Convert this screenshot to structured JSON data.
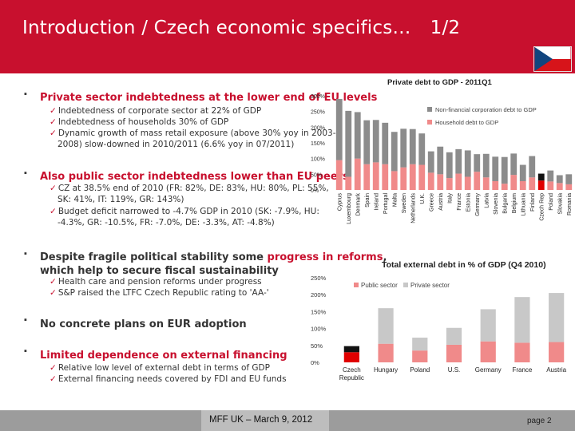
{
  "header": {
    "title": "Introduction / Czech economic specifics…",
    "page_fraction": "1/2"
  },
  "bullets": [
    {
      "text": "Private sector indebtedness at the lower end of EU levels",
      "subs": [
        "Indebtedness of corporate sector at 22% of GDP",
        "Indebtedness of households 30% of GDP",
        "Dynamic growth of mass retail exposure (above 30% yoy in 2003-",
        "2008) slow-downed in 2010/2011 (6.6% yoy in 07/2011)"
      ]
    },
    {
      "text": "Also public sector indebtedness lower than EU peers",
      "subs": [
        "CZ at 38.5% end of 2010  (FR: 82%, DE: 83%, HU: 80%, PL: 55%,",
        "SK: 41%, IT: 119%, GR: 143%)",
        "Budget deficit narrowed to  -4.7% GDP in 2010 (SK:  -7.9%, HU:",
        "-4.3%, GR: -10.5%, FR: -7.0%, DE: -3.3%, AT: -4.8%)"
      ]
    },
    {
      "text_a": "Despite fragile political stability some ",
      "text_b": "progress in reforms",
      "text_c": ",",
      "text_d": "which help to secure fiscal sustainability",
      "subs": [
        "Health care and pension reforms under progress",
        "S&P raised the LTFC Czech Republic rating to 'AA-'"
      ]
    },
    {
      "text": "No concrete plans on EUR adoption",
      "subs": []
    },
    {
      "text": "Limited dependence on external financing",
      "subs": [
        "Relative low level of external debt in terms of GDP",
        "External financing needs covered by FDI and EU funds"
      ]
    }
  ],
  "colors": {
    "brand_red": "#c8102e",
    "series_grey": "#8c8c8c",
    "series_pink": "#f08a8a",
    "highlight_black": "#111111",
    "highlight_red": "#e00000"
  },
  "chart_data": [
    {
      "type": "bar",
      "title": "Private debt to GDP - 2011Q1",
      "stacked": true,
      "ylim": [
        0,
        300
      ],
      "yticks": [
        "0%",
        "50%",
        "100%",
        "150%",
        "200%",
        "250%",
        "300%"
      ],
      "legend_position": "top-right",
      "categories": [
        "Cyprus",
        "Luxembourg",
        "Denmark",
        "Spain",
        "Ireland",
        "Portugal",
        "Malta",
        "Sweden",
        "Netherlands",
        "U.K.",
        "Greece",
        "Austria",
        "Italy",
        "France",
        "Estonia",
        "Germany",
        "Latvia",
        "Slovenia",
        "Bulgaria",
        "Belgium",
        "Lithuania",
        "Finland",
        "Czech Rep",
        "Poland",
        "Slovakia",
        "Romania"
      ],
      "highlight_category": "Czech Rep",
      "series": [
        {
          "name": "Non-financial corporation debt to GDP",
          "values": [
            195,
            210,
            148,
            140,
            135,
            132,
            125,
            123,
            112,
            100,
            68,
            88,
            82,
            78,
            84,
            56,
            75,
            78,
            85,
            68,
            52,
            68,
            22,
            35,
            25,
            32
          ]
        },
        {
          "name": "Household debt to GDP",
          "values": [
            95,
            42,
            100,
            82,
            88,
            82,
            60,
            72,
            82,
            80,
            55,
            50,
            38,
            52,
            42,
            58,
            40,
            28,
            20,
            48,
            28,
            40,
            30,
            27,
            22,
            18
          ]
        }
      ]
    },
    {
      "type": "bar",
      "title": "Total external debt in % of GDP (Q4 2010)",
      "stacked": true,
      "ylim": [
        0,
        250
      ],
      "yticks": [
        "0%",
        "50%",
        "100%",
        "150%",
        "200%",
        "250%"
      ],
      "legend_position": "top-left",
      "categories": [
        "Czech Republic",
        "Hungary",
        "Poland",
        "U.S.",
        "Germany",
        "France",
        "Austria"
      ],
      "category_lines": [
        [
          "Czech",
          "Republic"
        ],
        [
          "Hungary"
        ],
        [
          "Poland"
        ],
        [
          "U.S."
        ],
        [
          "Germany"
        ],
        [
          "France"
        ],
        [
          "Austria"
        ]
      ],
      "highlight_category": "Czech Republic",
      "series": [
        {
          "name": "Public sector",
          "values": [
            30,
            55,
            35,
            52,
            62,
            58,
            60
          ]
        },
        {
          "name": "Private sector",
          "values": [
            18,
            105,
            38,
            50,
            95,
            135,
            145
          ]
        }
      ]
    }
  ],
  "footer": {
    "center": "MFF UK – March 9, 2012",
    "page": "page 2"
  }
}
